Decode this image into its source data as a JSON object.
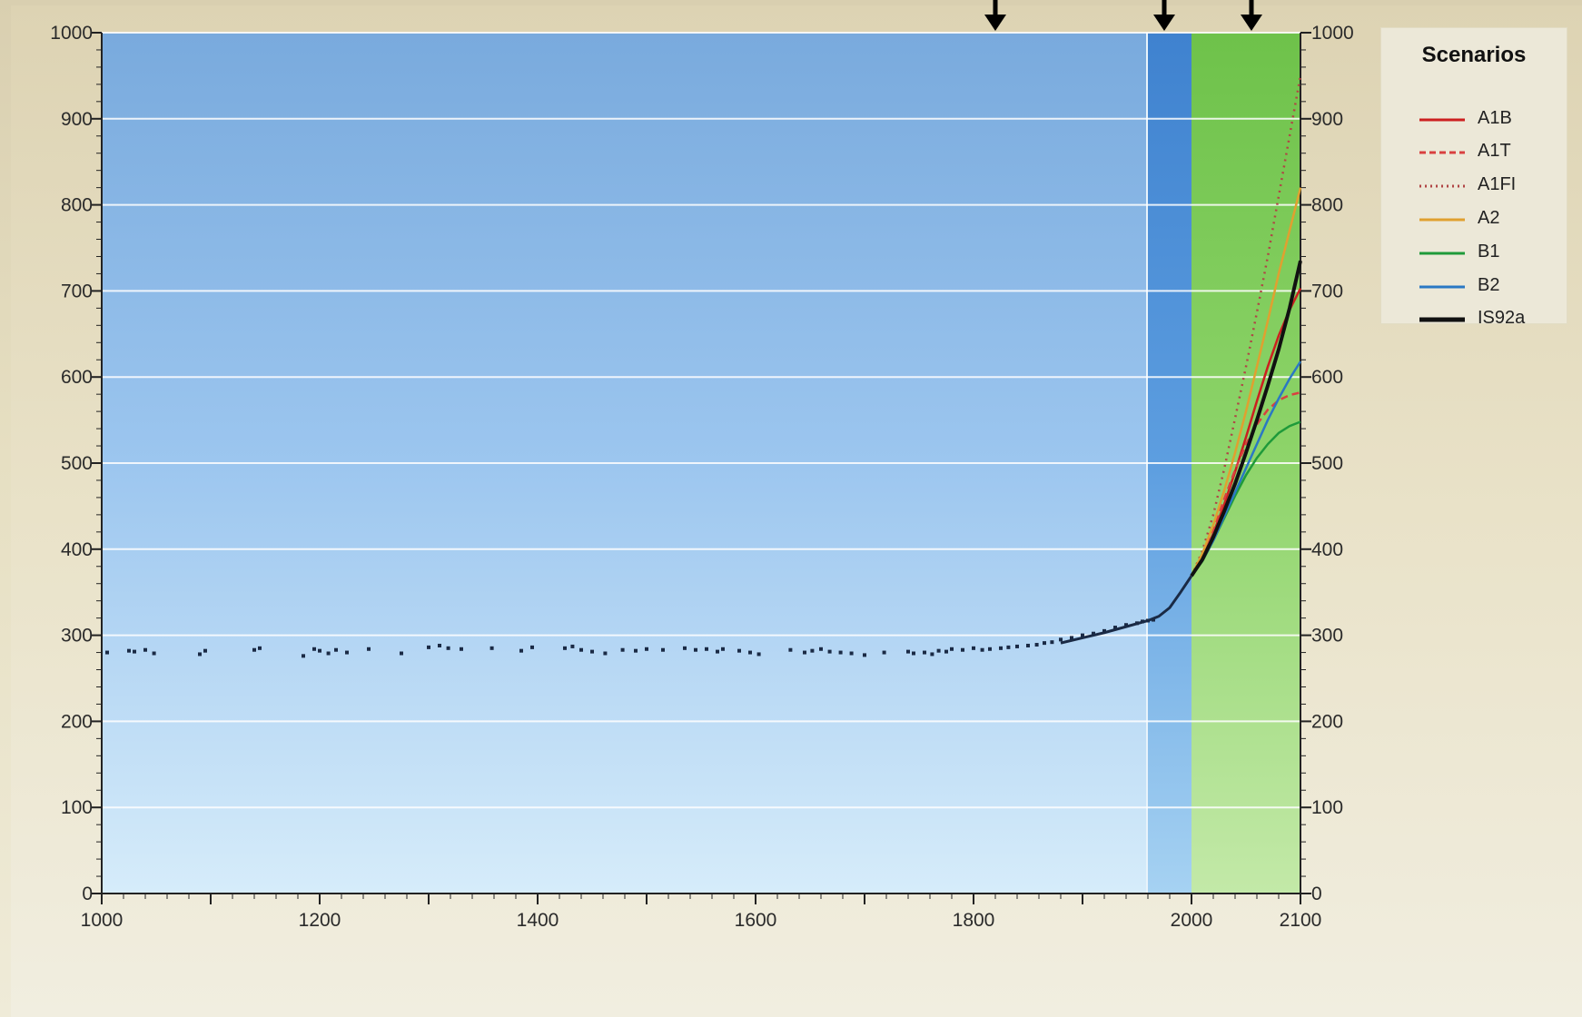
{
  "chart_data": {
    "type": "line",
    "title": "",
    "xlabel": "",
    "ylabel": "",
    "xlim": [
      1000,
      2100
    ],
    "ylim": [
      0,
      1000
    ],
    "x_ticks": [
      1000,
      1200,
      1400,
      1600,
      1800,
      2000,
      2100
    ],
    "y_ticks": [
      0,
      100,
      200,
      300,
      400,
      500,
      600,
      700,
      800,
      900,
      1000
    ],
    "grid": true,
    "legend": {
      "title": "Scenarios",
      "position": "right"
    },
    "shaded_regions": [
      {
        "from": 1000,
        "to": 1960,
        "color": "#8dbbea"
      },
      {
        "from": 1960,
        "to": 2000,
        "color": "#4f8fd6"
      },
      {
        "from": 2000,
        "to": 2100,
        "color": "#7fcf5e"
      }
    ],
    "arrows_at_x": [
      1820,
      1975,
      2055
    ],
    "historical": {
      "points": [
        [
          1005,
          280
        ],
        [
          1025,
          282
        ],
        [
          1030,
          281
        ],
        [
          1040,
          283
        ],
        [
          1048,
          279
        ],
        [
          1090,
          278
        ],
        [
          1095,
          282
        ],
        [
          1140,
          283
        ],
        [
          1145,
          285
        ],
        [
          1185,
          276
        ],
        [
          1195,
          284
        ],
        [
          1200,
          282
        ],
        [
          1208,
          279
        ],
        [
          1215,
          283
        ],
        [
          1225,
          280
        ],
        [
          1245,
          284
        ],
        [
          1275,
          279
        ],
        [
          1300,
          286
        ],
        [
          1310,
          288
        ],
        [
          1318,
          285
        ],
        [
          1330,
          284
        ],
        [
          1358,
          285
        ],
        [
          1385,
          282
        ],
        [
          1395,
          286
        ],
        [
          1425,
          285
        ],
        [
          1432,
          287
        ],
        [
          1440,
          283
        ],
        [
          1450,
          281
        ],
        [
          1462,
          279
        ],
        [
          1478,
          283
        ],
        [
          1490,
          282
        ],
        [
          1500,
          284
        ],
        [
          1515,
          283
        ],
        [
          1535,
          285
        ],
        [
          1545,
          283
        ],
        [
          1555,
          284
        ],
        [
          1565,
          281
        ],
        [
          1570,
          284
        ],
        [
          1585,
          282
        ],
        [
          1595,
          280
        ],
        [
          1603,
          278
        ],
        [
          1632,
          283
        ],
        [
          1645,
          280
        ],
        [
          1652,
          282
        ],
        [
          1660,
          284
        ],
        [
          1668,
          281
        ],
        [
          1678,
          280
        ],
        [
          1688,
          279
        ],
        [
          1700,
          277
        ],
        [
          1718,
          280
        ],
        [
          1740,
          281
        ],
        [
          1745,
          279
        ],
        [
          1755,
          280
        ],
        [
          1762,
          278
        ],
        [
          1768,
          282
        ],
        [
          1775,
          281
        ],
        [
          1780,
          284
        ],
        [
          1790,
          283
        ],
        [
          1800,
          285
        ],
        [
          1808,
          283
        ],
        [
          1815,
          284
        ],
        [
          1825,
          285
        ],
        [
          1832,
          286
        ],
        [
          1840,
          287
        ],
        [
          1850,
          288
        ],
        [
          1858,
          289
        ],
        [
          1865,
          291
        ],
        [
          1872,
          292
        ],
        [
          1880,
          295
        ],
        [
          1890,
          297
        ],
        [
          1900,
          300
        ],
        [
          1910,
          302
        ],
        [
          1920,
          305
        ],
        [
          1930,
          309
        ],
        [
          1940,
          312
        ],
        [
          1950,
          314
        ],
        [
          1955,
          316
        ],
        [
          1960,
          317
        ],
        [
          1965,
          318
        ]
      ],
      "line": [
        [
          1880,
          291
        ],
        [
          1900,
          297
        ],
        [
          1920,
          303
        ],
        [
          1940,
          310
        ],
        [
          1960,
          317
        ],
        [
          1970,
          322
        ],
        [
          1980,
          332
        ],
        [
          1990,
          350
        ],
        [
          2000,
          369
        ]
      ]
    },
    "series": [
      {
        "name": "A1B",
        "color": "#cc1f1f",
        "style": "solid",
        "x": [
          2000,
          2010,
          2020,
          2030,
          2040,
          2050,
          2060,
          2070,
          2080,
          2090,
          2100
        ],
        "y": [
          369,
          390,
          418,
          452,
          490,
          530,
          572,
          612,
          648,
          678,
          703
        ]
      },
      {
        "name": "A1T",
        "color": "#d94040",
        "style": "dashed",
        "x": [
          2000,
          2010,
          2020,
          2030,
          2040,
          2050,
          2060,
          2070,
          2080,
          2090,
          2100
        ],
        "y": [
          369,
          392,
          422,
          458,
          492,
          522,
          545,
          562,
          573,
          579,
          582
        ]
      },
      {
        "name": "A1FI",
        "color": "#b04545",
        "style": "dotted",
        "x": [
          2000,
          2010,
          2020,
          2030,
          2040,
          2050,
          2060,
          2070,
          2080,
          2090,
          2100
        ],
        "y": [
          369,
          398,
          440,
          493,
          552,
          612,
          675,
          740,
          810,
          880,
          950
        ]
      },
      {
        "name": "A2",
        "color": "#e0a030",
        "style": "solid",
        "x": [
          2000,
          2010,
          2020,
          2030,
          2040,
          2050,
          2060,
          2070,
          2080,
          2090,
          2100
        ],
        "y": [
          369,
          395,
          428,
          468,
          512,
          560,
          612,
          665,
          720,
          770,
          820
        ]
      },
      {
        "name": "B1",
        "color": "#1f9a3a",
        "style": "solid",
        "x": [
          2000,
          2010,
          2020,
          2030,
          2040,
          2050,
          2060,
          2070,
          2080,
          2090,
          2100
        ],
        "y": [
          369,
          386,
          410,
          436,
          462,
          486,
          506,
          522,
          535,
          543,
          548
        ]
      },
      {
        "name": "B2",
        "color": "#2a78c4",
        "style": "solid",
        "x": [
          2000,
          2010,
          2020,
          2030,
          2040,
          2050,
          2060,
          2070,
          2080,
          2090,
          2100
        ],
        "y": [
          369,
          387,
          410,
          438,
          466,
          494,
          522,
          550,
          575,
          598,
          618
        ]
      },
      {
        "name": "IS92a",
        "color": "#111111",
        "style": "solid",
        "x": [
          2000,
          2010,
          2020,
          2030,
          2040,
          2050,
          2060,
          2070,
          2080,
          2090,
          2100
        ],
        "y": [
          369,
          388,
          414,
          444,
          476,
          512,
          550,
          590,
          632,
          680,
          735
        ]
      }
    ]
  }
}
